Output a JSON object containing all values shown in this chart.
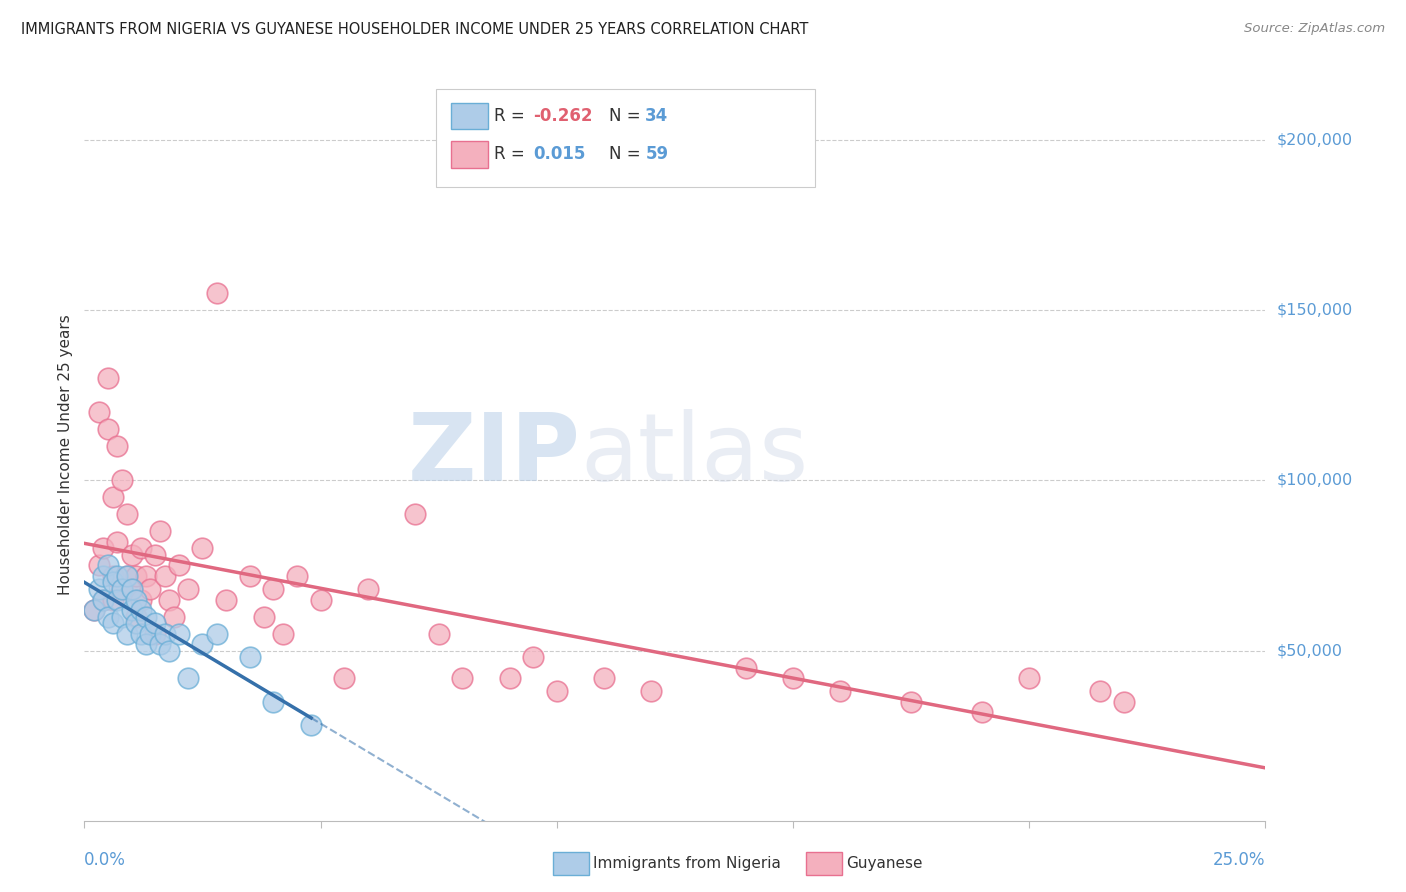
{
  "title": "IMMIGRANTS FROM NIGERIA VS GUYANESE HOUSEHOLDER INCOME UNDER 25 YEARS CORRELATION CHART",
  "source": "Source: ZipAtlas.com",
  "ylabel": "Householder Income Under 25 years",
  "ytick_labels": [
    "$50,000",
    "$100,000",
    "$150,000",
    "$200,000"
  ],
  "ytick_values": [
    50000,
    100000,
    150000,
    200000
  ],
  "ylim": [
    0,
    215000
  ],
  "xlim": [
    0.0,
    0.25
  ],
  "nigeria_color": "#aecce8",
  "nigeria_edge_color": "#6aaed6",
  "guyanese_color": "#f4b0be",
  "guyanese_edge_color": "#e87090",
  "nigeria_line_color": "#3570aa",
  "guyanese_line_color": "#e06880",
  "nigeria_points_x": [
    0.002,
    0.003,
    0.004,
    0.004,
    0.005,
    0.005,
    0.006,
    0.006,
    0.007,
    0.007,
    0.008,
    0.008,
    0.009,
    0.009,
    0.01,
    0.01,
    0.011,
    0.011,
    0.012,
    0.012,
    0.013,
    0.013,
    0.014,
    0.015,
    0.016,
    0.017,
    0.018,
    0.02,
    0.022,
    0.025,
    0.028,
    0.035,
    0.04,
    0.048
  ],
  "nigeria_points_y": [
    62000,
    68000,
    72000,
    65000,
    75000,
    60000,
    70000,
    58000,
    72000,
    65000,
    68000,
    60000,
    72000,
    55000,
    68000,
    62000,
    65000,
    58000,
    62000,
    55000,
    60000,
    52000,
    55000,
    58000,
    52000,
    55000,
    50000,
    55000,
    42000,
    52000,
    55000,
    48000,
    35000,
    28000
  ],
  "guyanese_points_x": [
    0.002,
    0.003,
    0.003,
    0.004,
    0.004,
    0.005,
    0.005,
    0.006,
    0.006,
    0.006,
    0.007,
    0.007,
    0.008,
    0.008,
    0.009,
    0.009,
    0.01,
    0.01,
    0.011,
    0.011,
    0.012,
    0.012,
    0.013,
    0.014,
    0.015,
    0.015,
    0.016,
    0.017,
    0.018,
    0.019,
    0.02,
    0.022,
    0.025,
    0.028,
    0.03,
    0.035,
    0.038,
    0.04,
    0.042,
    0.045,
    0.05,
    0.055,
    0.06,
    0.07,
    0.075,
    0.08,
    0.09,
    0.095,
    0.1,
    0.11,
    0.12,
    0.14,
    0.15,
    0.16,
    0.175,
    0.19,
    0.2,
    0.215,
    0.22
  ],
  "guyanese_points_y": [
    62000,
    75000,
    120000,
    80000,
    65000,
    115000,
    130000,
    72000,
    95000,
    65000,
    110000,
    82000,
    100000,
    68000,
    90000,
    72000,
    78000,
    68000,
    72000,
    60000,
    80000,
    65000,
    72000,
    68000,
    78000,
    55000,
    85000,
    72000,
    65000,
    60000,
    75000,
    68000,
    80000,
    155000,
    65000,
    72000,
    60000,
    68000,
    55000,
    72000,
    65000,
    42000,
    68000,
    90000,
    55000,
    42000,
    42000,
    48000,
    38000,
    42000,
    38000,
    45000,
    42000,
    38000,
    35000,
    32000,
    42000,
    38000,
    35000
  ],
  "watermark_text": "ZIPatlas",
  "watermark_color": "#c8d8ee",
  "background_color": "#ffffff"
}
